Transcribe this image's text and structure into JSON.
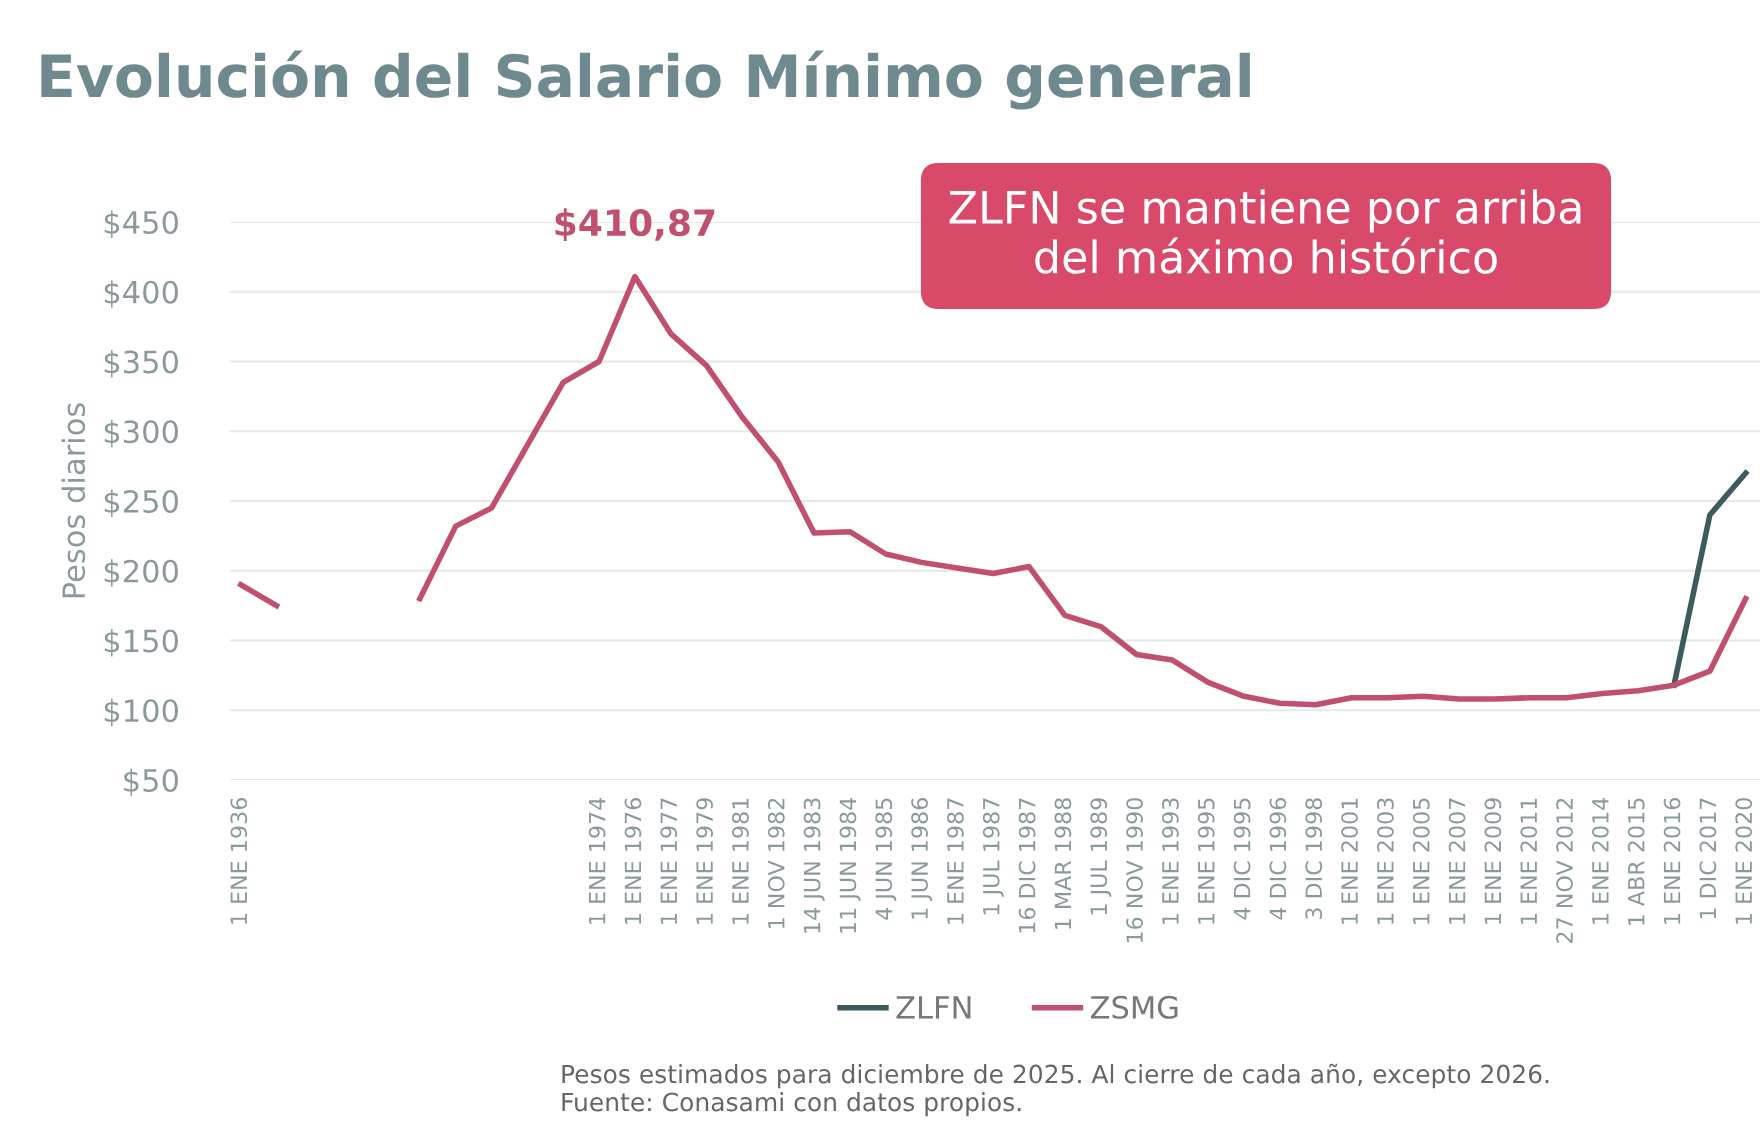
{
  "chart_data": {
    "type": "line",
    "title": "Evolución del Salario Mínimo general",
    "ylabel": "Pesos diarios",
    "categories": [
      "1 ENE 1936",
      null,
      null,
      null,
      null,
      null,
      null,
      null,
      null,
      null,
      "1 ENE 1974",
      "1 ENE 1976",
      "1 ENE 1977",
      "1 ENE 1979",
      "1 ENE 1981",
      "1 NOV 1982",
      "14 JUN 1983",
      "11 JUN 1984",
      "4 JUN 1985",
      "1 JUN 1986",
      "1 ENE 1987",
      "1 JUL 1987",
      "16 DIC 1987",
      "1 MAR 1988",
      "1 JUL 1989",
      "16 NOV 1990",
      "1 ENE 1993",
      "1 ENE 1995",
      "4 DIC 1995",
      "4 DIC 1996",
      "3 DIC 1998",
      "1 ENE 2001",
      "1 ENE 2003",
      "1 ENE 2005",
      "1 ENE 2007",
      "1 ENE 2009",
      "1 ENE 2011",
      "27 NOV 2012",
      "1 ENE 2014",
      "1 ABR 2015",
      "1 ENE 2016",
      "1 DIC 2017",
      "1 ENE 2020"
    ],
    "series": [
      {
        "name": "ZLFN",
        "color": "#3d5a5e",
        "values": [
          null,
          null,
          null,
          null,
          null,
          null,
          null,
          null,
          null,
          null,
          null,
          null,
          null,
          null,
          null,
          null,
          null,
          null,
          null,
          null,
          null,
          null,
          null,
          null,
          null,
          null,
          null,
          null,
          null,
          null,
          null,
          null,
          null,
          null,
          null,
          null,
          null,
          null,
          null,
          null,
          118,
          240,
          270
        ]
      },
      {
        "name": "ZSMG",
        "color": "#c0506e",
        "values": [
          190,
          175,
          null,
          null,
          null,
          180,
          232,
          245,
          290,
          335,
          350,
          410.87,
          370,
          347,
          310,
          278,
          227,
          228,
          212,
          206,
          202,
          198,
          203,
          168,
          160,
          140,
          136,
          120,
          110,
          105,
          104,
          109,
          109,
          110,
          108,
          108,
          109,
          109,
          112,
          114,
          118,
          128,
          180
        ]
      }
    ],
    "ylim": [
      50,
      450
    ],
    "yticks": [
      {
        "value": 50,
        "label": "$50"
      },
      {
        "value": 100,
        "label": "$100"
      },
      {
        "value": 150,
        "label": "$150"
      },
      {
        "value": 200,
        "label": "$200"
      },
      {
        "value": 250,
        "label": "$250"
      },
      {
        "value": 300,
        "label": "$300"
      },
      {
        "value": 350,
        "label": "$350"
      },
      {
        "value": 400,
        "label": "$400"
      },
      {
        "value": 450,
        "label": "$450"
      }
    ],
    "grid": "y",
    "legend": "bottom",
    "annotations": [
      {
        "text": "$410,87",
        "x": "1 ENE 1976",
        "y": 410.87
      },
      "ZLFN se mantiene por arriba\ndel máximo histórico",
      "Pesos estimados para diciembre de 2025. Al cierre de cada año, excepto 2026.\nFuente: Conasami con datos propios."
    ]
  }
}
